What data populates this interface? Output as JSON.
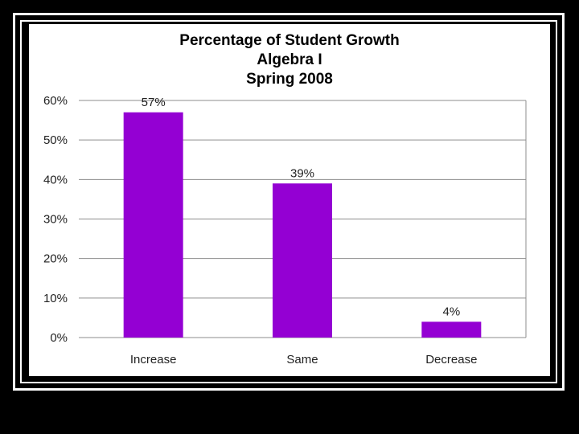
{
  "chart_data": {
    "type": "bar",
    "title": [
      "Percentage of Student Growth",
      "Algebra I",
      "Spring 2008"
    ],
    "categories": [
      "Increase",
      "Same",
      "Decrease"
    ],
    "values": [
      57,
      39,
      4
    ],
    "data_labels": [
      "57%",
      "39%",
      "4%"
    ],
    "ylim": [
      0,
      60
    ],
    "yticks": [
      0,
      10,
      20,
      30,
      40,
      50,
      60
    ],
    "ytick_labels": [
      "0%",
      "10%",
      "20%",
      "30%",
      "40%",
      "50%",
      "60%"
    ],
    "xlabel": "",
    "ylabel": "",
    "grid": true,
    "bar_color": "#9400D3"
  }
}
